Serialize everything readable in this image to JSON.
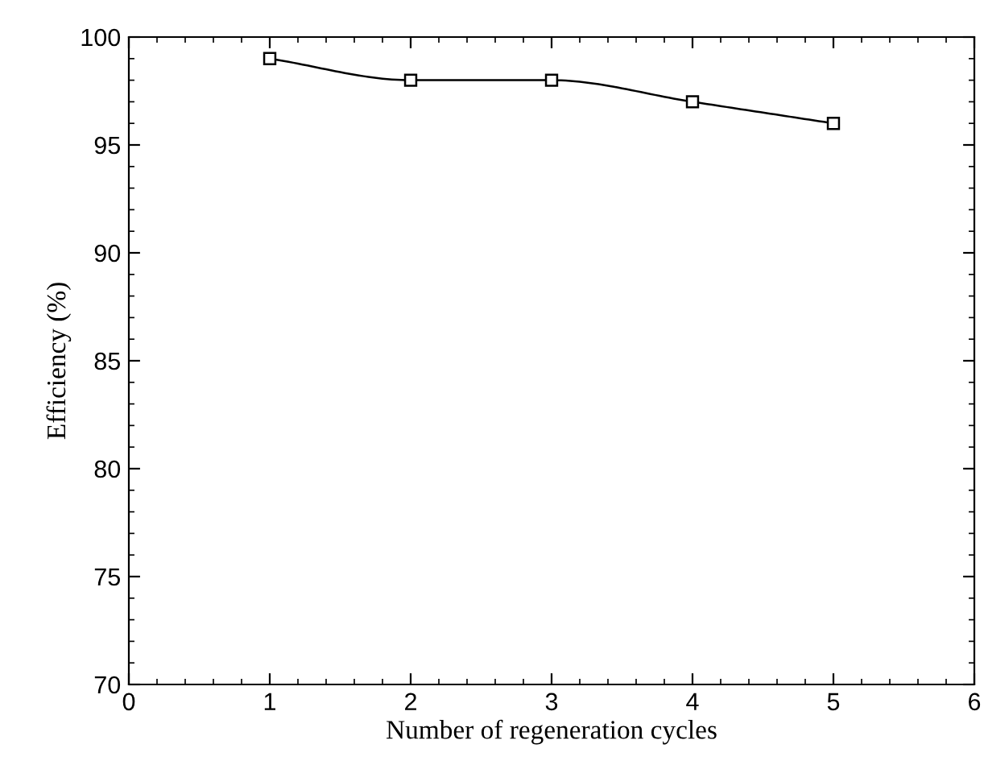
{
  "chart_data": {
    "type": "line",
    "xlabel": "Number of regeneration cycles",
    "ylabel": "Efficiency (%)",
    "x": [
      1,
      2,
      3,
      4,
      5
    ],
    "series": [
      {
        "color": "#000000",
        "values": [
          99,
          98,
          98,
          97,
          96
        ]
      }
    ],
    "xlim": [
      0,
      6
    ],
    "xticks": [
      0,
      1,
      2,
      3,
      4,
      5,
      6
    ],
    "ylim": [
      70,
      100
    ],
    "yticks": [
      70,
      75,
      80,
      85,
      90,
      95,
      100
    ],
    "marker": "square",
    "line_style": "solid",
    "grid": false,
    "legend": false
  }
}
